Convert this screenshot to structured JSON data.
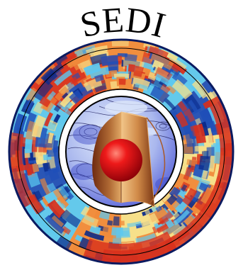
{
  "logo": {
    "text": "SEDI",
    "colors": {
      "ring_red": "#d8301c",
      "ring_orange": "#f08a3a",
      "ring_yellow": "#f6e08a",
      "ring_cyan": "#5cc8f0",
      "ring_blue": "#1f4fb8",
      "ring_dark_blue": "#0a2a8a",
      "globe_blue": "#5a64d8",
      "globe_light": "#d8e4f8",
      "core_red": "#e0101a",
      "cutaway_tan": "#c88a4a",
      "cutaway_dark": "#7a3a1a"
    }
  }
}
